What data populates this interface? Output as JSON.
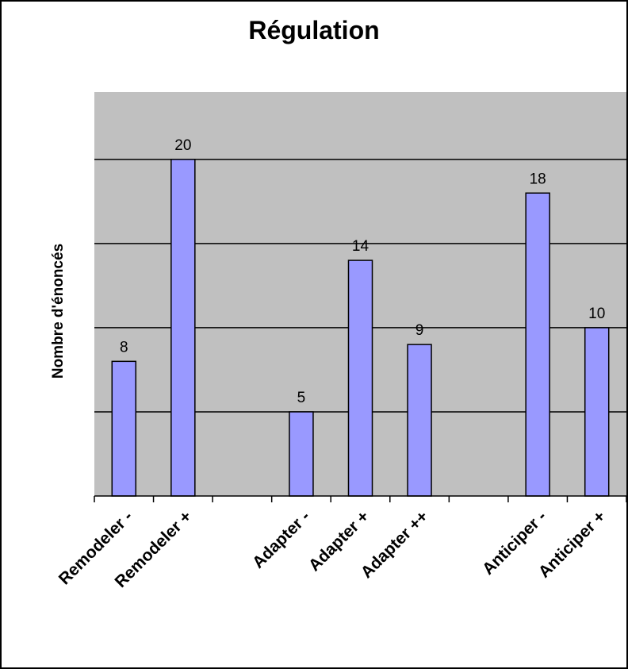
{
  "chart_data": {
    "type": "bar",
    "title": "Régulation",
    "xlabel": "",
    "ylabel": "Nombre d'énoncés",
    "categories": [
      "Remodeler -",
      "Remodeler +",
      "",
      "Adapter -",
      "Adapter +",
      "Adapter ++",
      "",
      "Anticiper -",
      "Anticiper +"
    ],
    "values": [
      8,
      20,
      null,
      5,
      14,
      9,
      null,
      18,
      10
    ],
    "data_labels": [
      "8",
      "20",
      "",
      "5",
      "14",
      "9",
      "",
      "18",
      "10"
    ],
    "ylim": [
      0,
      24
    ],
    "ytick_step": 5,
    "grid": true,
    "legend": "none",
    "colors": {
      "plot_background": "#c0c0c0",
      "bar_fill": "#9999ff",
      "bar_stroke": "#000000",
      "gridline": "#000000"
    }
  }
}
